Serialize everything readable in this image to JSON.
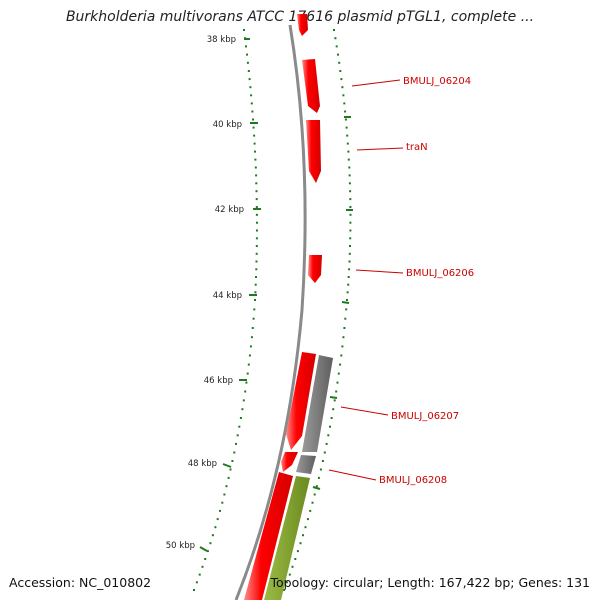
{
  "title": "Burkholderia multivorans ATCC 17616 plasmid pTGL1, complete ...",
  "accession": "Accession: NC_010802",
  "summary": "Topology: circular; Length: 167,422 bp; Genes: 131",
  "kbp_ticks": [
    {
      "label": "38 kbp"
    },
    {
      "label": "40 kbp"
    },
    {
      "label": "42 kbp"
    },
    {
      "label": "44 kbp"
    },
    {
      "label": "46 kbp"
    },
    {
      "label": "48 kbp"
    },
    {
      "label": "50 kbp"
    }
  ],
  "gene_labels": [
    {
      "label": "BMULJ_06204"
    },
    {
      "label": "traN"
    },
    {
      "label": "BMULJ_06206"
    },
    {
      "label": "BMULJ_06207"
    },
    {
      "label": "BMULJ_06208"
    }
  ],
  "colors": {
    "gene": "#ff0000",
    "gene_highlight": "#ff8080",
    "backbone": "#8a8a8a",
    "gc_bar": "#707070",
    "green_bar": "#7a9a2a",
    "tick": "#1e7a1e",
    "label": "#cc0000"
  }
}
